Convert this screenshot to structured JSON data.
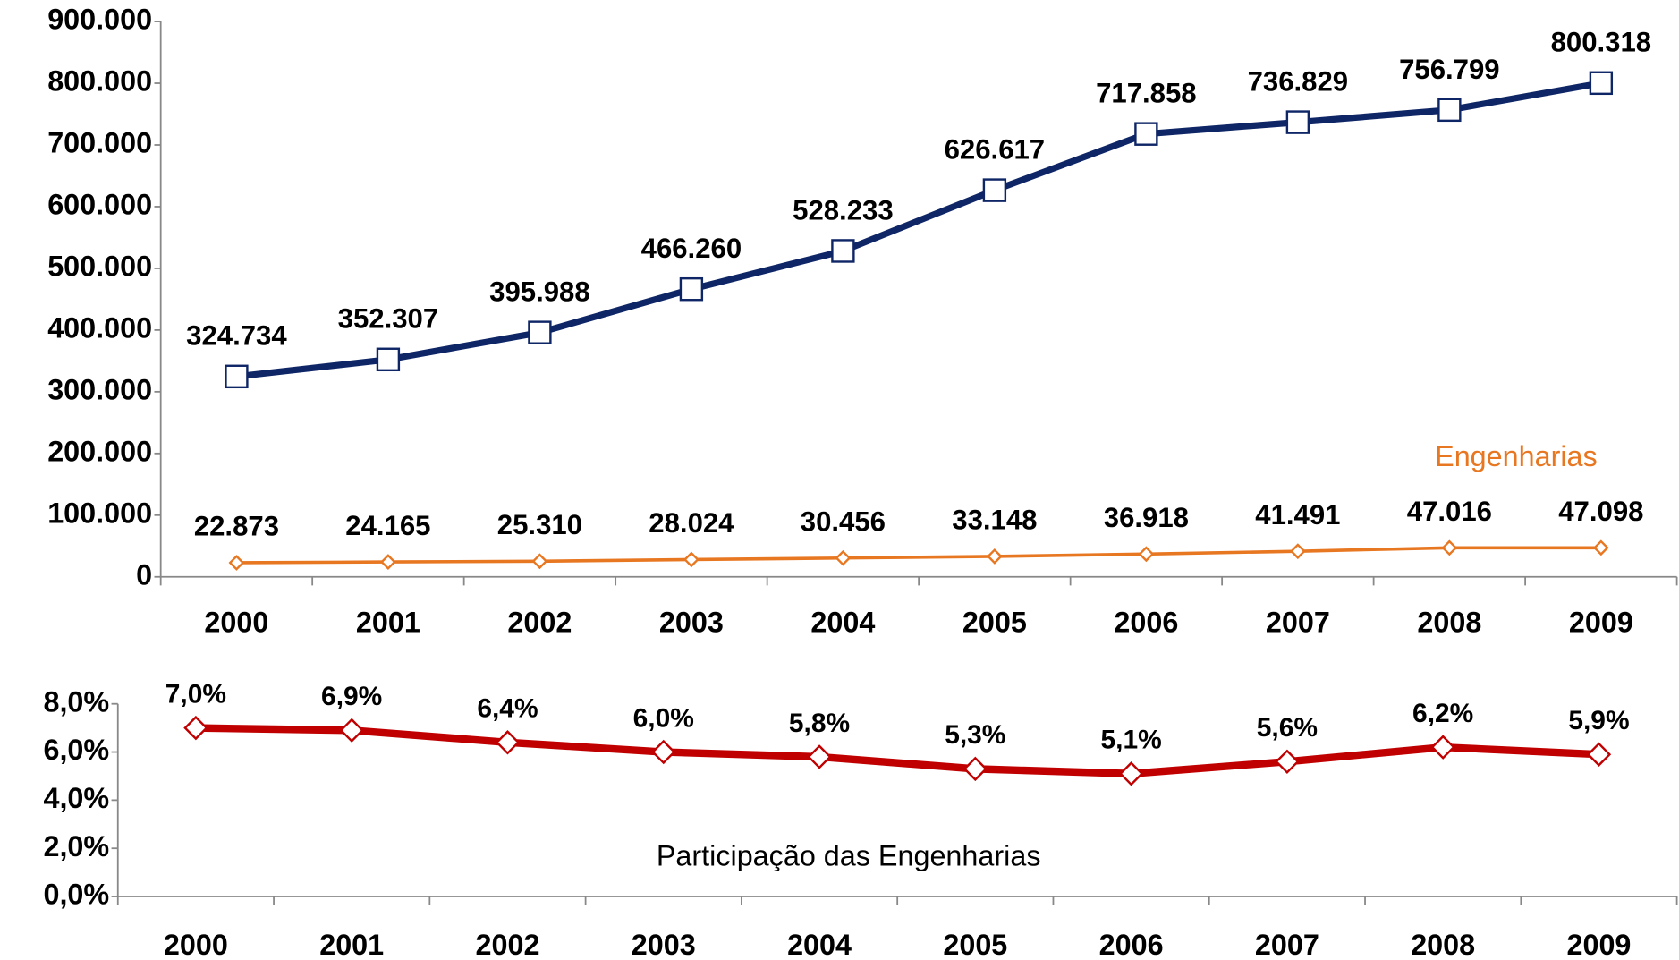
{
  "chart_data": [
    {
      "type": "line",
      "categories": [
        "2000",
        "2001",
        "2002",
        "2003",
        "2004",
        "2005",
        "2006",
        "2007",
        "2008",
        "2009"
      ],
      "series": [
        {
          "color": "#0e2566",
          "marker": "square",
          "values": [
            324734,
            352307,
            395988,
            466260,
            528233,
            626617,
            717858,
            736829,
            756799,
            800318
          ],
          "value_labels": [
            "324.734",
            "352.307",
            "395.988",
            "466.260",
            "528.233",
            "626.617",
            "717.858",
            "736.829",
            "756.799",
            "800.318"
          ]
        },
        {
          "name": "Engenharias",
          "color": "#e87722",
          "marker": "diamond",
          "values": [
            22873,
            24165,
            25310,
            28024,
            30456,
            33148,
            36918,
            41491,
            47016,
            47098
          ],
          "value_labels": [
            "22.873",
            "24.165",
            "25.310",
            "28.024",
            "30.456",
            "33.148",
            "36.918",
            "41.491",
            "47.016",
            "47.098"
          ]
        }
      ],
      "ylim": [
        0,
        900000
      ],
      "yticks": [
        0,
        {
          "value": 100000,
          "label": "100.000"
        },
        {
          "value": 200000,
          "label": "200.000"
        },
        {
          "value": 300000,
          "label": "300.000"
        },
        {
          "value": 400000,
          "label": "400.000"
        },
        {
          "value": 500000,
          "label": "500.000"
        },
        {
          "value": 600000,
          "label": "600.000"
        },
        {
          "value": 700000,
          "label": "700.000"
        },
        {
          "value": 800000,
          "label": "800.000"
        },
        {
          "value": 900000,
          "label": "900.000"
        }
      ],
      "grid": false
    },
    {
      "type": "line",
      "annotation": "Participação das Engenharias",
      "categories": [
        "2000",
        "2001",
        "2002",
        "2003",
        "2004",
        "2005",
        "2006",
        "2007",
        "2008",
        "2009"
      ],
      "series": [
        {
          "color": "#c00000",
          "marker": "diamond",
          "values": [
            7.0,
            6.9,
            6.4,
            6.0,
            5.8,
            5.3,
            5.1,
            5.6,
            6.2,
            5.9
          ],
          "value_labels": [
            "7,0%",
            "6,9%",
            "6,4%",
            "6,0%",
            "5,8%",
            "5,3%",
            "5,1%",
            "5,6%",
            "6,2%",
            "5,9%"
          ]
        }
      ],
      "ylim": [
        0,
        8
      ],
      "yticks": [
        {
          "value": 0,
          "label": "0,0%"
        },
        {
          "value": 2,
          "label": "2,0%"
        },
        {
          "value": 4,
          "label": "4,0%"
        },
        {
          "value": 6,
          "label": "6,0%"
        },
        {
          "value": 8,
          "label": "8,0%"
        }
      ],
      "grid": false
    }
  ]
}
